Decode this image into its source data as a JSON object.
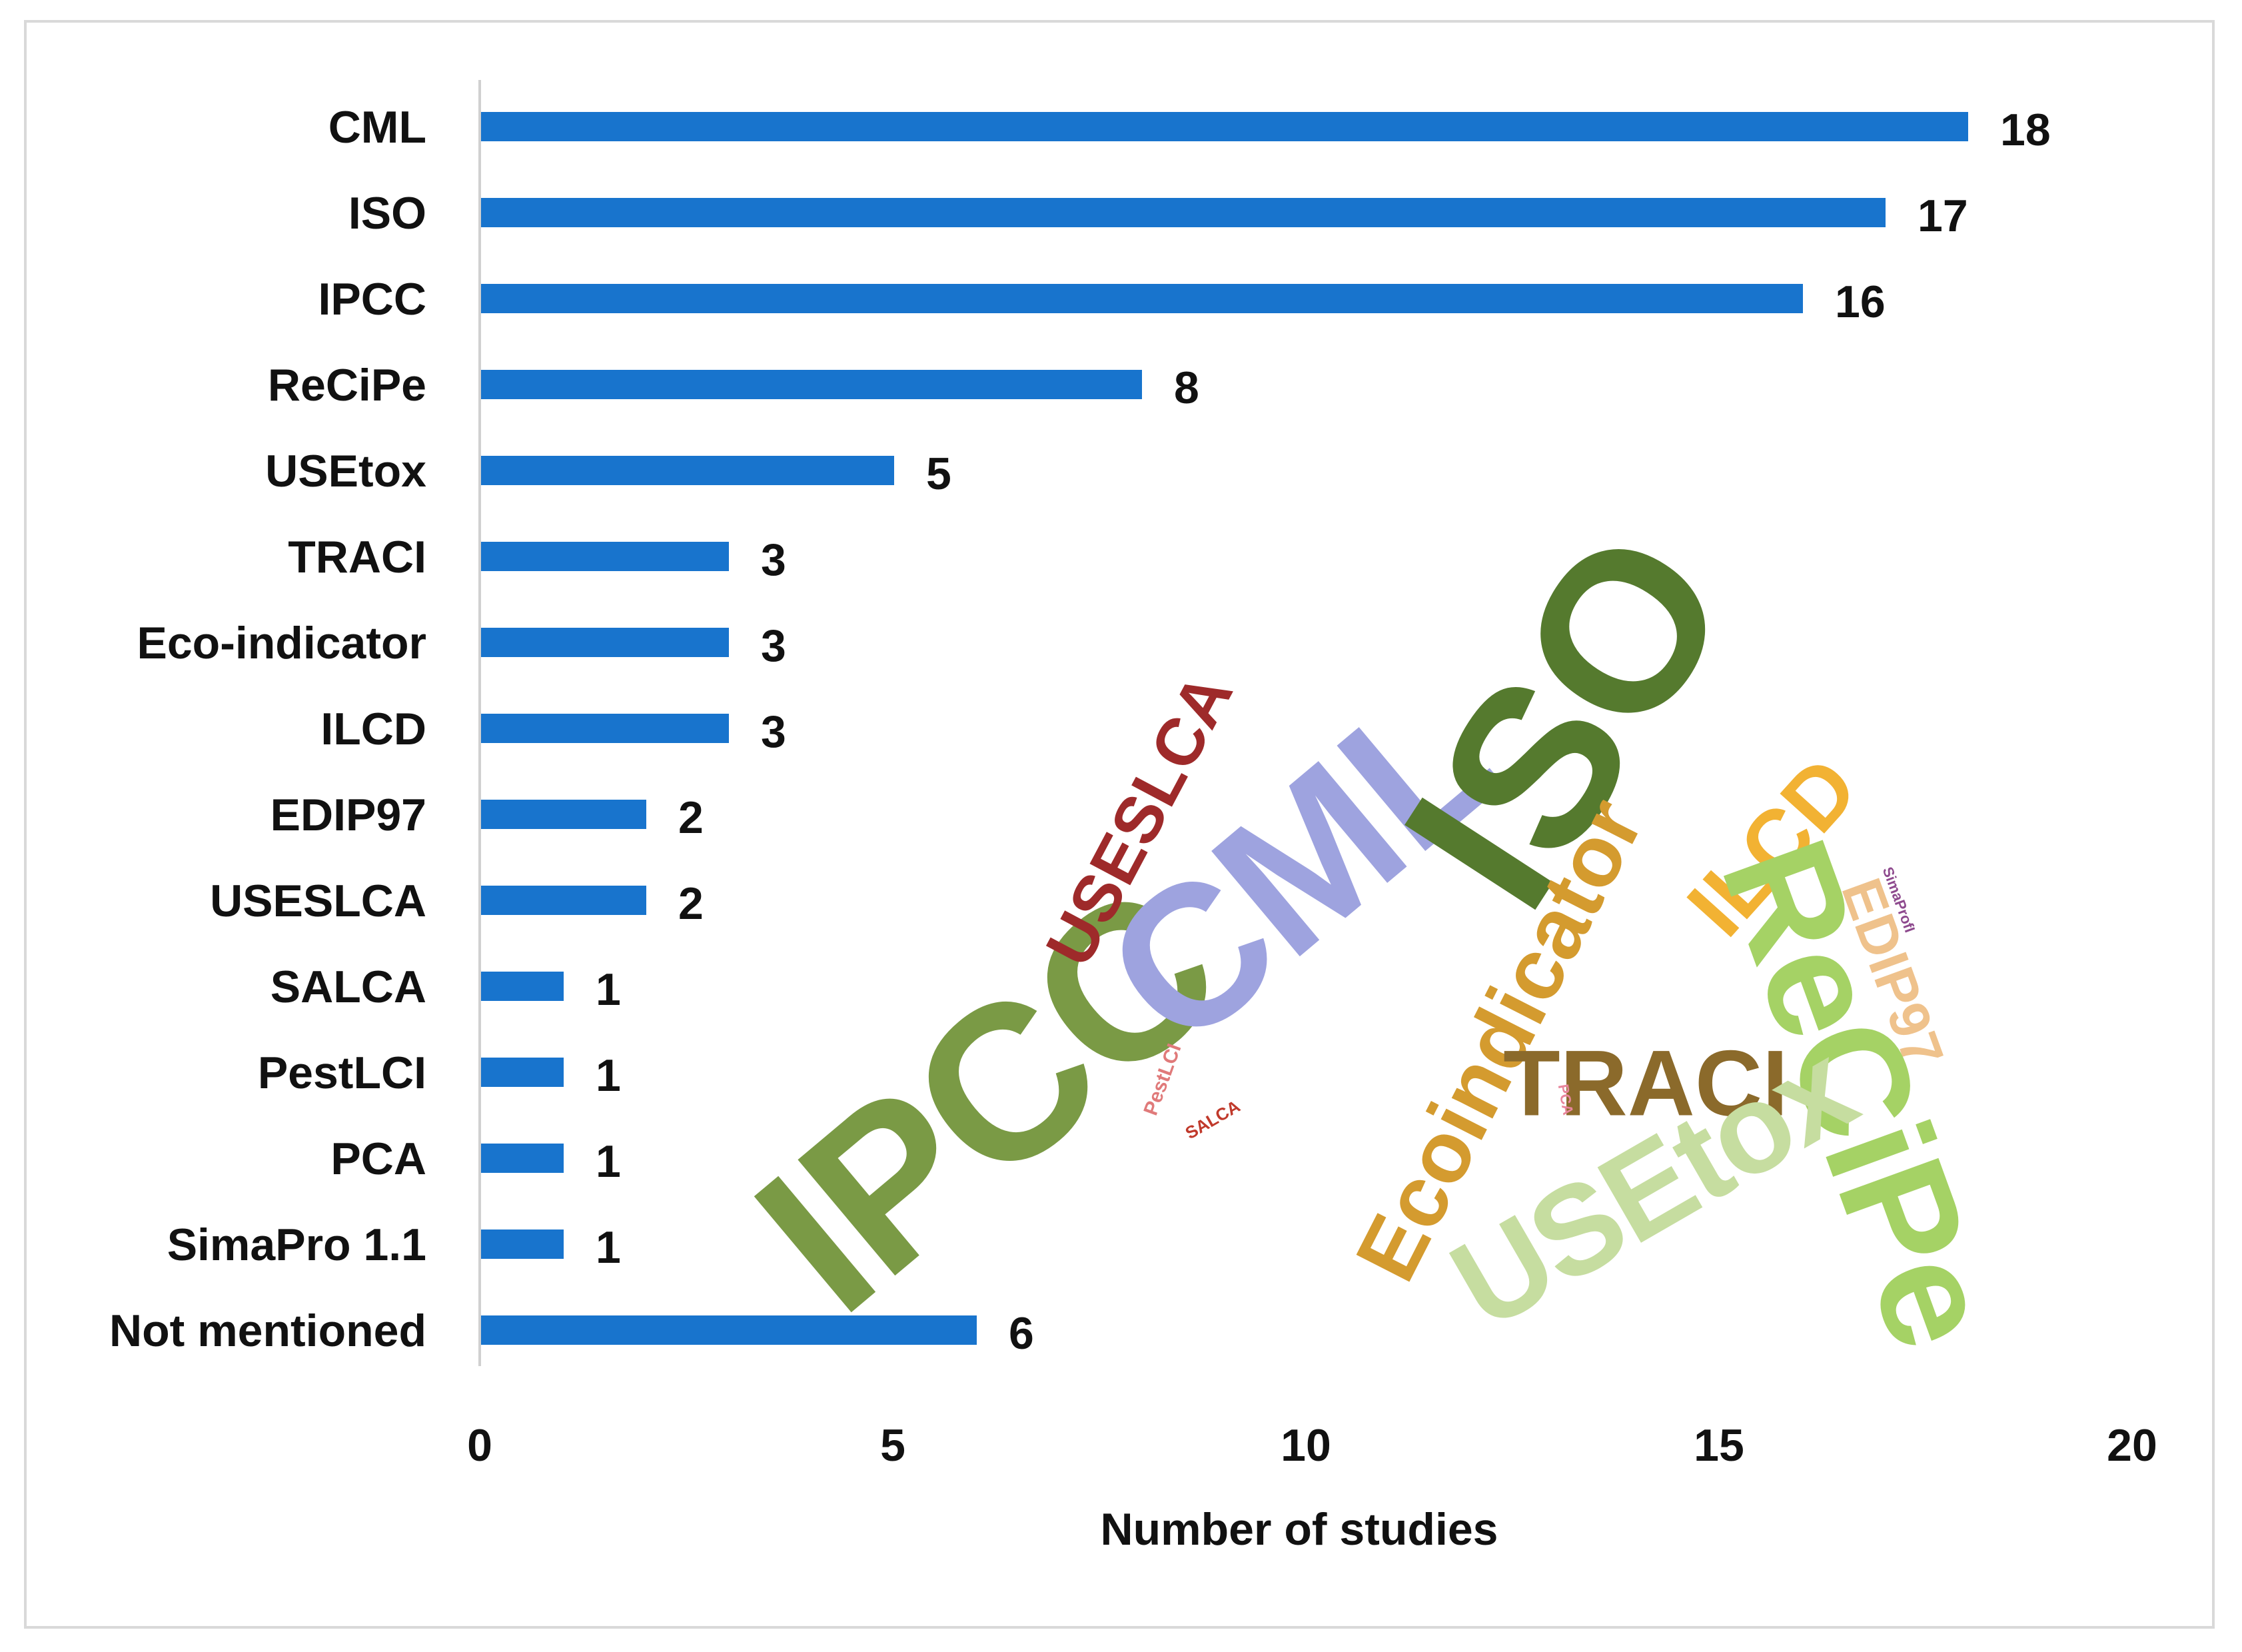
{
  "chart_data": {
    "type": "bar",
    "orientation": "horizontal",
    "categories": [
      "CML",
      "ISO",
      "IPCC",
      "ReCiPe",
      "USEtox",
      "TRACI",
      "Eco-indicator",
      "ILCD",
      "EDIP97",
      "USESLCA",
      "SALCA",
      "PestLCI",
      "PCA",
      "SimaPro 1.1",
      "Not mentioned"
    ],
    "values": [
      18,
      17,
      16,
      8,
      5,
      3,
      3,
      3,
      2,
      2,
      1,
      1,
      1,
      1,
      6
    ],
    "xlabel": "Number of studies",
    "ylabel": "",
    "xlim": [
      0,
      20
    ],
    "xticks": [
      0,
      5,
      10,
      15,
      20
    ],
    "grid": false,
    "bar_color": "#1874CD",
    "data_labels": true
  },
  "word_cloud": {
    "words": [
      {
        "text": "IPCC",
        "color": "#7A9A45"
      },
      {
        "text": "CML",
        "color": "#9EA3DF"
      },
      {
        "text": "ISO",
        "color": "#557A2E"
      },
      {
        "text": "USESLCA",
        "color": "#9E2A2A"
      },
      {
        "text": "Ecoindicator",
        "color": "#D49B2F"
      },
      {
        "text": "ILCD",
        "color": "#F2B233"
      },
      {
        "text": "SimaProfI",
        "color": "#8E4A8E"
      },
      {
        "text": "EDIP97",
        "color": "#EFC28C"
      },
      {
        "text": "ReCiPe",
        "color": "#A5D265"
      },
      {
        "text": "TRACI",
        "color": "#8B6A2B"
      },
      {
        "text": "USEtox",
        "color": "#C6DDA0"
      },
      {
        "text": "PestLCI",
        "color": "#E07A7A"
      },
      {
        "text": "SALCA",
        "color": "#C0392B"
      },
      {
        "text": "PCA",
        "color": "#E8869C"
      }
    ]
  }
}
